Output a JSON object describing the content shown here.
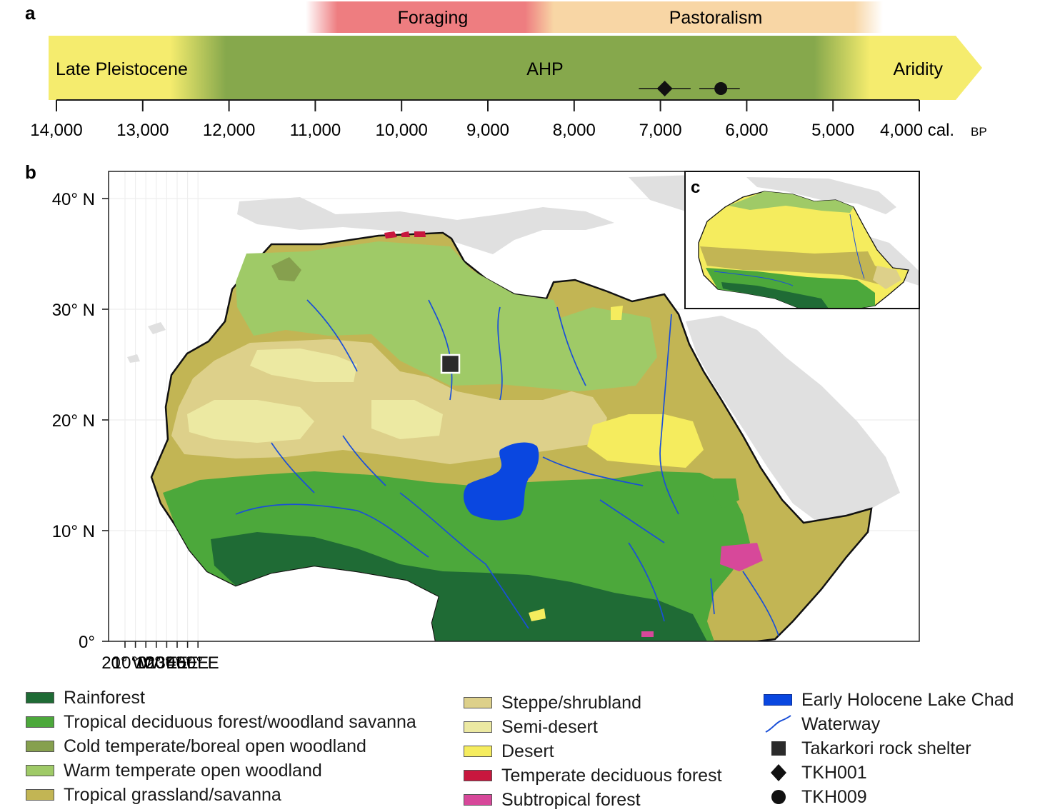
{
  "panel_a": {
    "letter": "a",
    "phases": [
      {
        "label": "Foraging",
        "color": "#ee7d80"
      },
      {
        "label": "Pastoralism",
        "color": "#f8d6a5"
      }
    ],
    "periods": [
      {
        "label": "Late Pleistocene",
        "color": "#f5ec6e"
      },
      {
        "label": "AHP",
        "color": "#86a84c"
      },
      {
        "label": "Aridity",
        "color": "#f5ec6e"
      }
    ],
    "ticks": [
      "14,000",
      "13,000",
      "12,000",
      "11,000",
      "10,000",
      "9,000",
      "8,000",
      "7,000",
      "6,000",
      "5,000",
      "4,000 cal."
    ],
    "tick_unit": "BP",
    "markers": [
      {
        "name": "TKH001",
        "symbol": "diamond",
        "value_bp": 6950,
        "range_bp": [
          7250,
          6650
        ]
      },
      {
        "name": "TKH009",
        "symbol": "circle",
        "value_bp": 6300,
        "range_bp": [
          6550,
          6080
        ]
      }
    ]
  },
  "panel_b": {
    "letter": "b",
    "lat_ticks": [
      "40° N",
      "30° N",
      "20° N",
      "10° N",
      "0°"
    ],
    "lon_ticks": [
      "20° W",
      "10° W",
      "0°",
      "10° E",
      "20° E",
      "30° E",
      "40° E",
      "50° E"
    ]
  },
  "panel_c": {
    "letter": "c"
  },
  "legend": {
    "col1": [
      {
        "label": "Rainforest",
        "color": "#1f6b35"
      },
      {
        "label": "Tropical deciduous forest/woodland savanna",
        "color": "#4ca83b"
      },
      {
        "label": "Cold temperate/boreal open woodland",
        "color": "#86a04e"
      },
      {
        "label": "Warm temperate open woodland",
        "color": "#9fca67"
      },
      {
        "label": "Tropical grassland/savanna",
        "color": "#c2b554"
      }
    ],
    "col2": [
      {
        "label": "Steppe/shrubland",
        "color": "#ddd08a"
      },
      {
        "label": "Semi-desert",
        "color": "#ece9a2"
      },
      {
        "label": "Desert",
        "color": "#f5ec5e"
      },
      {
        "label": "Temperate deciduous forest",
        "color": "#c8173e"
      },
      {
        "label": "Subtropical forest",
        "color": "#d7489a"
      }
    ],
    "col3": [
      {
        "label": "Early Holocene Lake Chad",
        "symbol": "lake-swatch",
        "color": "#0a47e0"
      },
      {
        "label": "Waterway",
        "symbol": "waterway-line",
        "color": "#1a4fd8"
      },
      {
        "label": "Takarkori rock shelter",
        "symbol": "square",
        "color": "#2b2b2b"
      },
      {
        "label": "TKH001",
        "symbol": "diamond",
        "color": "#111111"
      },
      {
        "label": "TKH009",
        "symbol": "circle",
        "color": "#111111"
      }
    ]
  }
}
